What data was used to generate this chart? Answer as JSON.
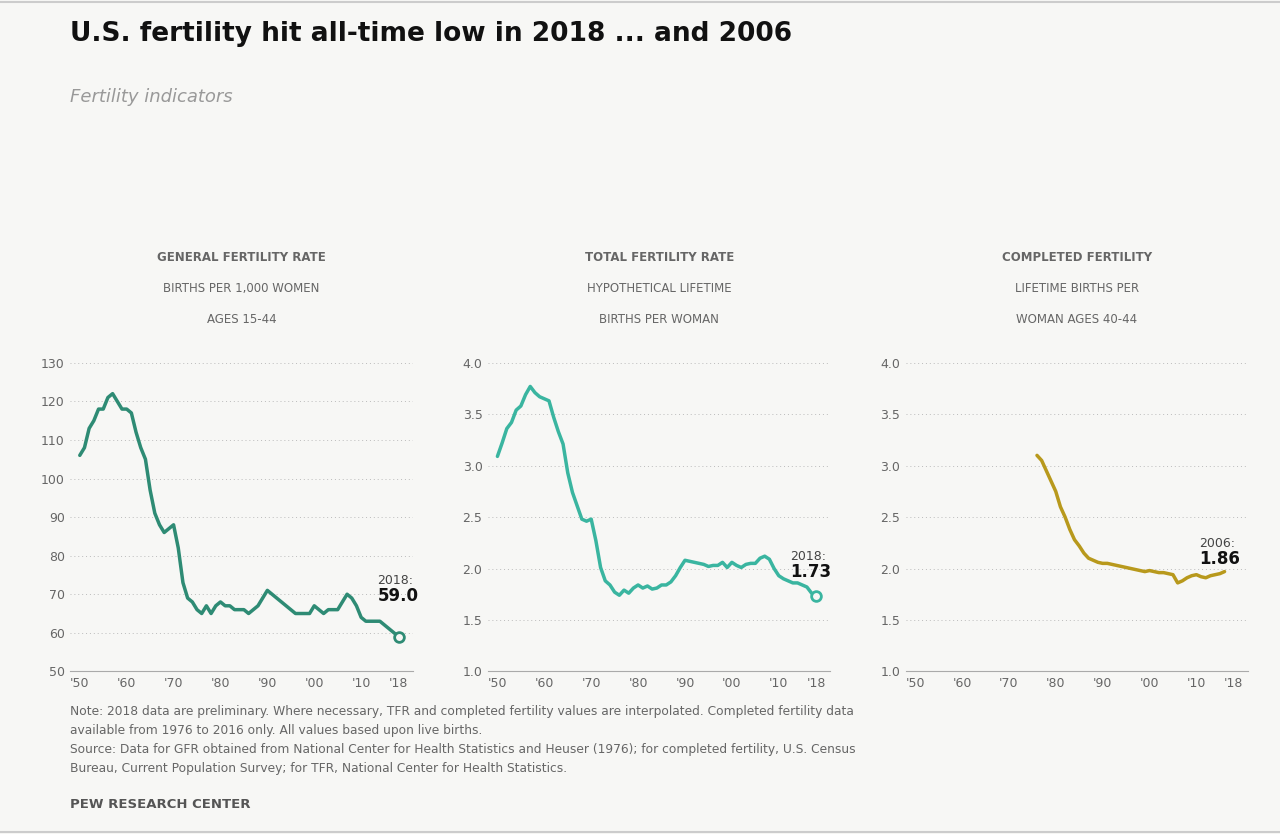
{
  "title": "U.S. fertility hit all-time low in 2018 ... and 2006",
  "subtitle": "Fertility indicators",
  "background_color": "#f7f7f5",
  "line_color_gfr": "#2e8b74",
  "line_color_tfr": "#3ab5a0",
  "line_color_cf": "#b8991c",
  "gfr_title1": "GENERAL FERTILITY RATE",
  "gfr_title2": "BIRTHS PER 1,000 WOMEN",
  "gfr_title3": "AGES 15-44",
  "tfr_title1": "TOTAL FERTILITY RATE",
  "tfr_title2": "HYPOTHETICAL LIFETIME",
  "tfr_title3": "BIRTHS PER WOMAN",
  "cf_title1": "COMPLETED FERTILITY",
  "cf_title2": "LIFETIME BIRTHS PER",
  "cf_title3": "WOMAN AGES 40-44",
  "note_text": "Note: 2018 data are preliminary. Where necessary, TFR and completed fertility values are interpolated. Completed fertility data\navailable from 1976 to 2016 only. All values based upon live births.\nSource: Data for GFR obtained from National Center for Health Statistics and Heuser (1976); for completed fertility, U.S. Census\nBureau, Current Population Survey; for TFR, National Center for Health Statistics.",
  "footer": "PEW RESEARCH CENTER",
  "gfr_years": [
    1950,
    1951,
    1952,
    1953,
    1954,
    1955,
    1956,
    1957,
    1958,
    1959,
    1960,
    1961,
    1962,
    1963,
    1964,
    1965,
    1966,
    1967,
    1968,
    1969,
    1970,
    1971,
    1972,
    1973,
    1974,
    1975,
    1976,
    1977,
    1978,
    1979,
    1980,
    1981,
    1982,
    1983,
    1984,
    1985,
    1986,
    1987,
    1988,
    1989,
    1990,
    1991,
    1992,
    1993,
    1994,
    1995,
    1996,
    1997,
    1998,
    1999,
    2000,
    2001,
    2002,
    2003,
    2004,
    2005,
    2006,
    2007,
    2008,
    2009,
    2010,
    2011,
    2012,
    2013,
    2014,
    2015,
    2016,
    2017,
    2018
  ],
  "gfr_values": [
    106,
    108,
    113,
    115,
    118,
    118,
    121,
    122,
    120,
    118,
    118,
    117,
    112,
    108,
    105,
    97,
    91,
    88,
    86,
    87,
    88,
    82,
    73,
    69,
    68,
    66,
    65,
    67,
    65,
    67,
    68,
    67,
    67,
    66,
    66,
    66,
    65,
    66,
    67,
    69,
    71,
    70,
    69,
    68,
    67,
    66,
    65,
    65,
    65,
    65,
    67,
    66,
    65,
    66,
    66,
    66,
    68,
    70,
    69,
    67,
    64,
    63,
    63,
    63,
    63,
    62,
    61,
    60,
    59
  ],
  "tfr_years": [
    1950,
    1951,
    1952,
    1953,
    1954,
    1955,
    1956,
    1957,
    1958,
    1959,
    1960,
    1961,
    1962,
    1963,
    1964,
    1965,
    1966,
    1967,
    1968,
    1969,
    1970,
    1971,
    1972,
    1973,
    1974,
    1975,
    1976,
    1977,
    1978,
    1979,
    1980,
    1981,
    1982,
    1983,
    1984,
    1985,
    1986,
    1987,
    1988,
    1989,
    1990,
    1991,
    1992,
    1993,
    1994,
    1995,
    1996,
    1997,
    1998,
    1999,
    2000,
    2001,
    2002,
    2003,
    2004,
    2005,
    2006,
    2007,
    2008,
    2009,
    2010,
    2011,
    2012,
    2013,
    2014,
    2015,
    2016,
    2017,
    2018
  ],
  "tfr_values": [
    3.09,
    3.22,
    3.36,
    3.42,
    3.54,
    3.58,
    3.69,
    3.77,
    3.71,
    3.67,
    3.65,
    3.63,
    3.47,
    3.33,
    3.21,
    2.93,
    2.74,
    2.61,
    2.48,
    2.46,
    2.48,
    2.27,
    2.01,
    1.88,
    1.84,
    1.77,
    1.74,
    1.79,
    1.76,
    1.81,
    1.84,
    1.81,
    1.83,
    1.8,
    1.81,
    1.84,
    1.84,
    1.87,
    1.93,
    2.01,
    2.08,
    2.07,
    2.06,
    2.05,
    2.04,
    2.02,
    2.03,
    2.03,
    2.06,
    2.01,
    2.06,
    2.03,
    2.01,
    2.04,
    2.05,
    2.05,
    2.1,
    2.12,
    2.09,
    2.0,
    1.93,
    1.9,
    1.88,
    1.86,
    1.86,
    1.84,
    1.82,
    1.76,
    1.73
  ],
  "cf_years": [
    1976,
    1977,
    1978,
    1979,
    1980,
    1981,
    1982,
    1983,
    1984,
    1985,
    1986,
    1987,
    1988,
    1989,
    1990,
    1991,
    1992,
    1993,
    1994,
    1995,
    1996,
    1997,
    1998,
    1999,
    2000,
    2001,
    2002,
    2003,
    2004,
    2005,
    2006,
    2007,
    2008,
    2009,
    2010,
    2011,
    2012,
    2013,
    2014,
    2015,
    2016
  ],
  "cf_values": [
    3.1,
    3.05,
    2.95,
    2.85,
    2.75,
    2.6,
    2.5,
    2.38,
    2.28,
    2.22,
    2.15,
    2.1,
    2.08,
    2.06,
    2.05,
    2.05,
    2.04,
    2.03,
    2.02,
    2.01,
    2.0,
    1.99,
    1.98,
    1.97,
    1.98,
    1.97,
    1.96,
    1.96,
    1.95,
    1.94,
    1.86,
    1.88,
    1.91,
    1.93,
    1.94,
    1.92,
    1.91,
    1.93,
    1.94,
    1.95,
    1.97
  ],
  "gfr_ylim": [
    50,
    130
  ],
  "gfr_yticks": [
    50,
    60,
    70,
    80,
    90,
    100,
    110,
    120,
    130
  ],
  "tfr_ylim": [
    1.0,
    4.0
  ],
  "tfr_yticks": [
    1.0,
    1.5,
    2.0,
    2.5,
    3.0,
    3.5,
    4.0
  ],
  "cf_ylim": [
    1.0,
    4.0
  ],
  "cf_yticks": [
    1.0,
    1.5,
    2.0,
    2.5,
    3.0,
    3.5,
    4.0
  ],
  "xtick_years": [
    1950,
    1960,
    1970,
    1980,
    1990,
    2000,
    2010,
    2018
  ],
  "xtick_labels": [
    "'50",
    "'60",
    "'70",
    "'80",
    "'90",
    "'00",
    "'10",
    "'18"
  ]
}
